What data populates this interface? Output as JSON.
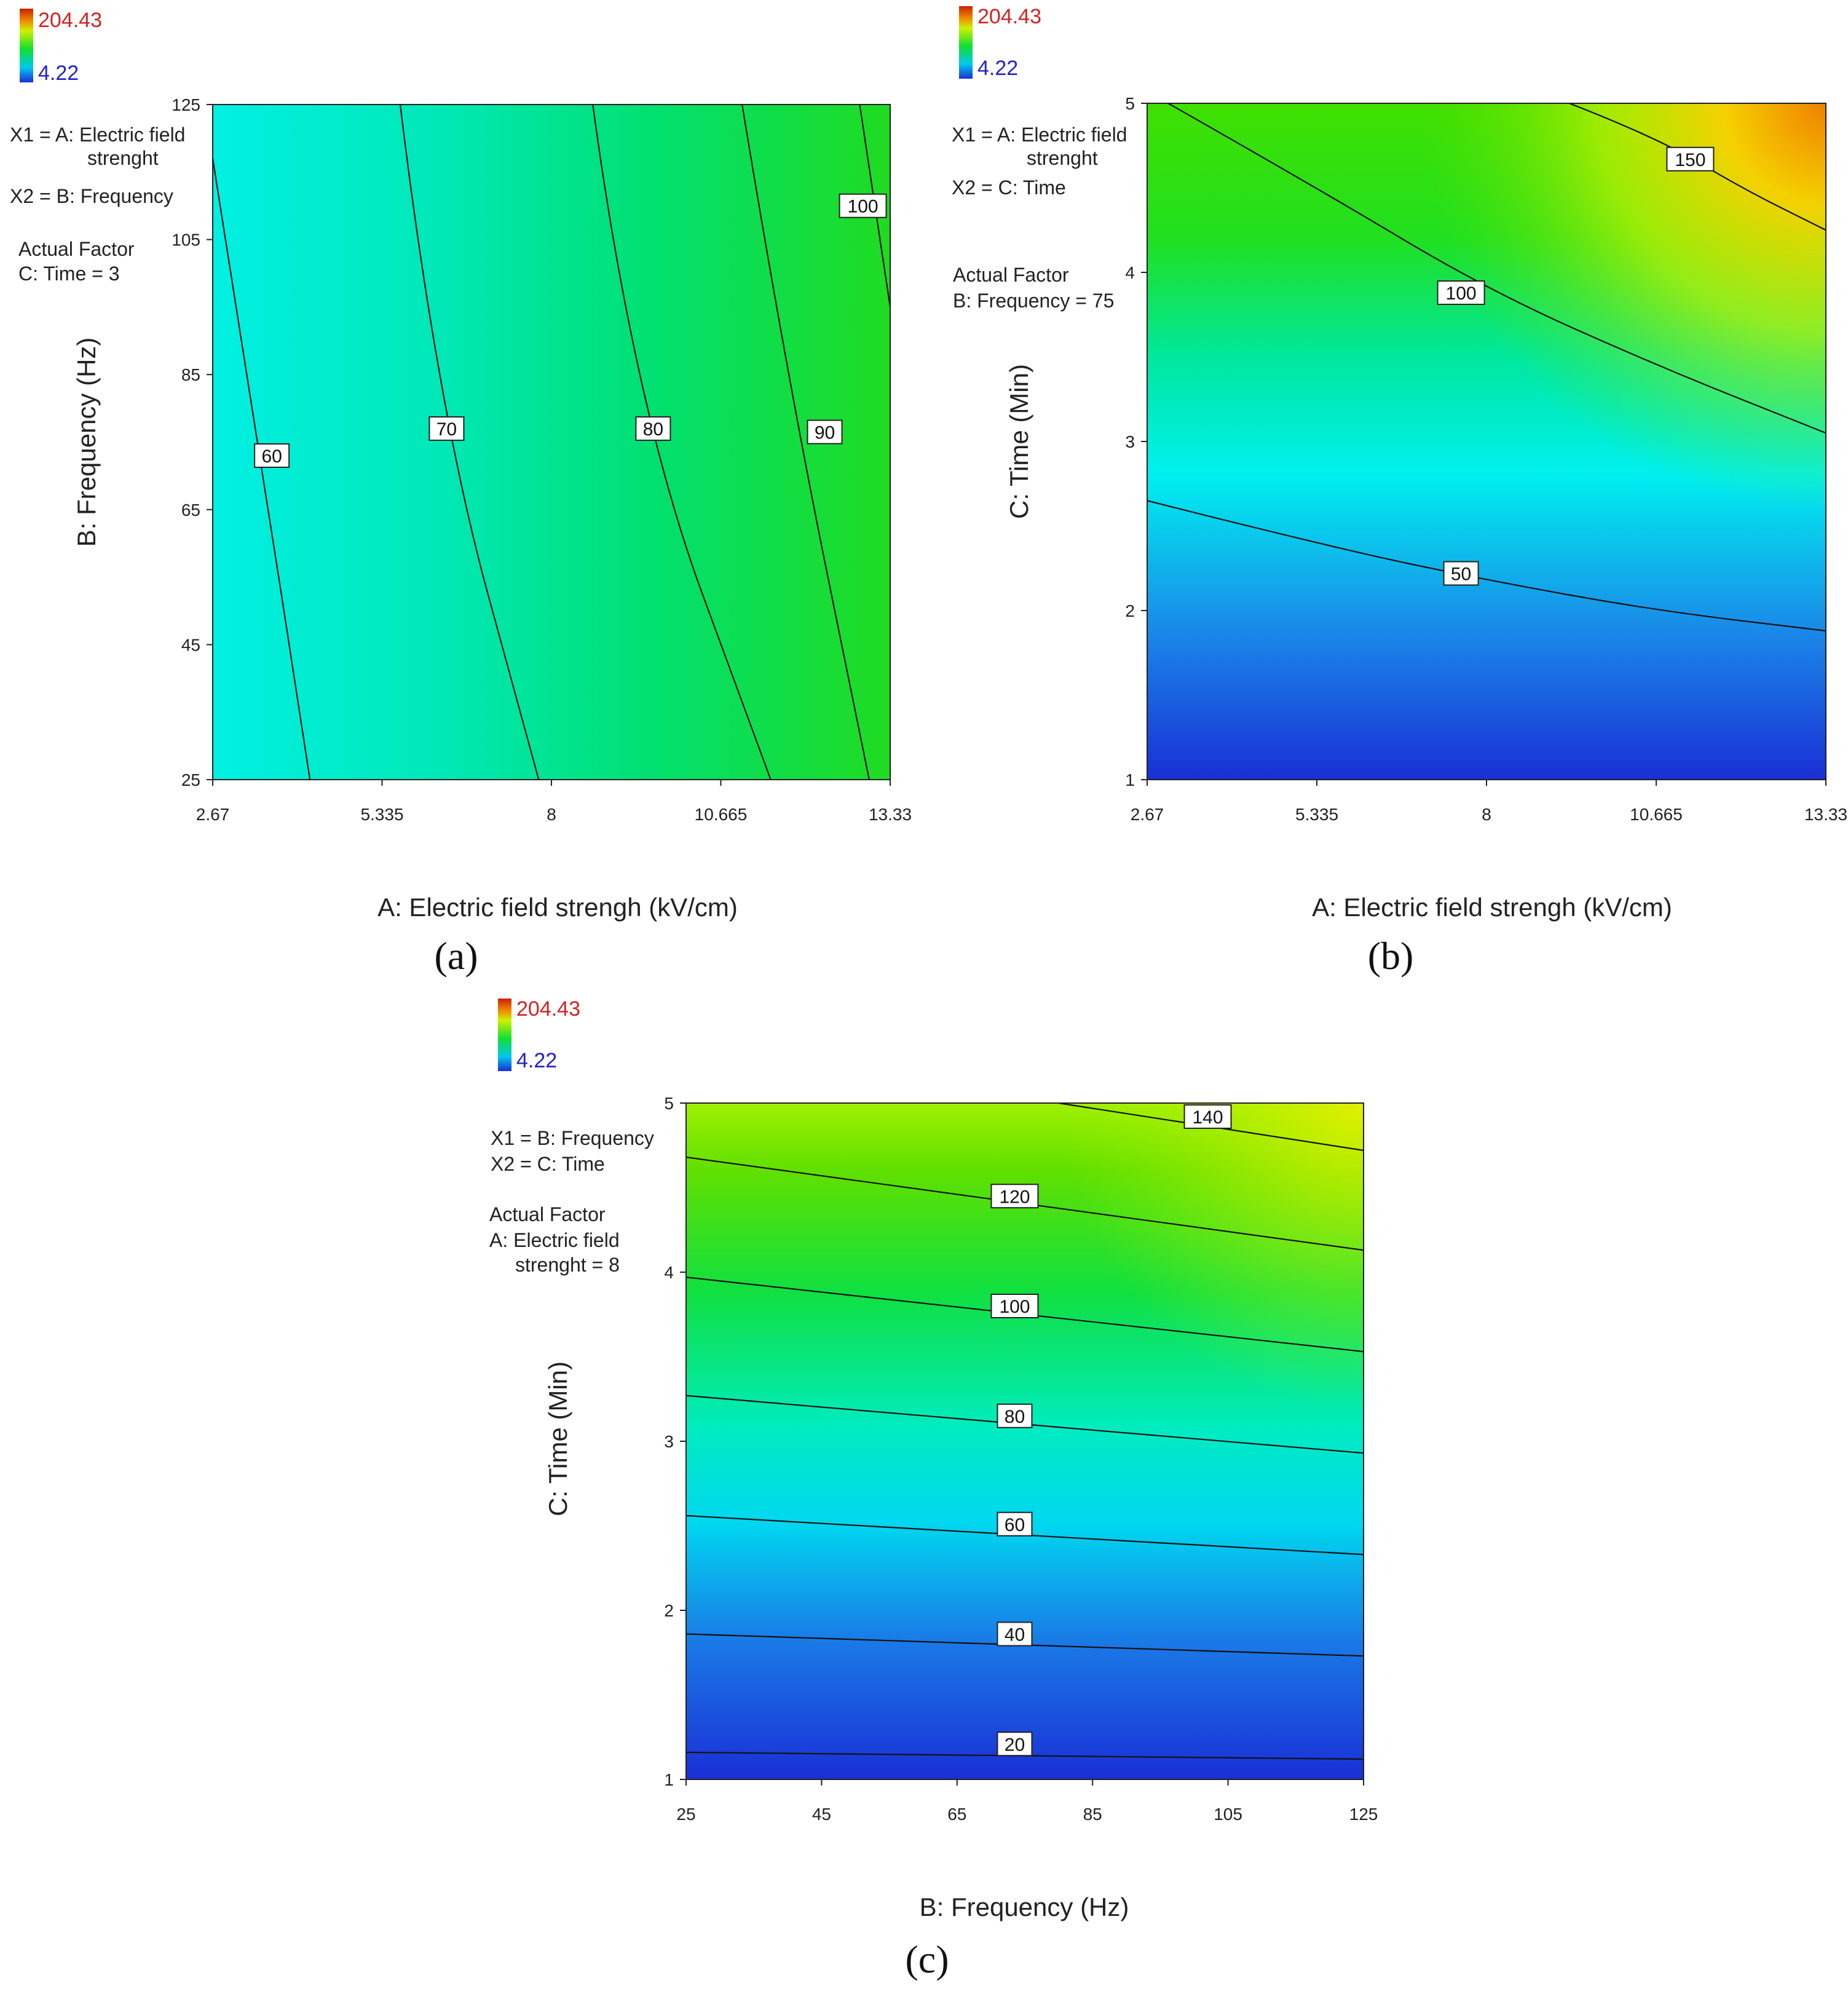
{
  "colors": {
    "scale": [
      "#1a2fd6",
      "#1a88e8",
      "#00f0f0",
      "#00e8b0",
      "#1ee01e",
      "#b8f000",
      "#ffe000",
      "#f08000",
      "#c82000"
    ],
    "legend_max_text": "#d42222",
    "legend_min_text": "#2222cc",
    "contour": "#111111",
    "axis": "#222222"
  },
  "chart_data": [
    {
      "id": "a",
      "type": "heatmap",
      "subtype": "contour",
      "panel_label": "(a)",
      "legend": {
        "max": 204.43,
        "min": 4.22,
        "max_label": "204.43",
        "min_label": "4.22"
      },
      "xlabel": "A: Electric field strengh  (kV/cm)",
      "ylabel": "B: Frequency (Hz)",
      "xlim": [
        2.67,
        13.33
      ],
      "ylim": [
        25,
        125
      ],
      "x_ticks": [
        "2.67",
        "5.335",
        "8",
        "10.665",
        "13.33"
      ],
      "y_ticks": [
        "25",
        "45",
        "65",
        "85",
        "105",
        "125"
      ],
      "annotation": {
        "x1": "X1 = A: Electric field",
        "x1_cont": "strenght",
        "x2": "X2 = B: Frequency",
        "actual_factor": "Actual Factor",
        "fixed": "C: Time = 3"
      },
      "response_range": [
        52,
        104
      ],
      "contours": [
        {
          "level": 60,
          "label": "60",
          "points": [
            [
              2.67,
              117
            ],
            [
              3.3,
              80
            ],
            [
              4.2,
              25
            ]
          ],
          "label_at": [
            3.6,
            73
          ]
        },
        {
          "level": 70,
          "label": "70",
          "points": [
            [
              5.62,
              125
            ],
            [
              6.2,
              80
            ],
            [
              7.8,
              25
            ]
          ],
          "label_at": [
            6.35,
            77
          ]
        },
        {
          "level": 80,
          "label": "80",
          "points": [
            [
              8.65,
              125
            ],
            [
              9.3,
              80
            ],
            [
              11.45,
              25
            ]
          ],
          "label_at": [
            9.6,
            77
          ]
        },
        {
          "level": 90,
          "label": "90",
          "points": [
            [
              11.0,
              125
            ],
            [
              11.7,
              85
            ],
            [
              13.0,
              25
            ]
          ],
          "label_at": [
            12.3,
            76.5
          ]
        },
        {
          "level": 100,
          "label": "100",
          "points": [
            [
              12.85,
              125
            ],
            [
              13.33,
              95
            ]
          ],
          "label_at": [
            12.9,
            110
          ]
        }
      ]
    },
    {
      "id": "b",
      "type": "heatmap",
      "subtype": "contour",
      "panel_label": "(b)",
      "legend": {
        "max": 204.43,
        "min": 4.22,
        "max_label": "204.43",
        "min_label": "4.22"
      },
      "xlabel": "A: Electric field strengh  (kV/cm)",
      "ylabel": "C: Time (Min)",
      "xlim": [
        2.67,
        13.33
      ],
      "ylim": [
        1,
        5
      ],
      "x_ticks": [
        "2.67",
        "5.335",
        "8",
        "10.665",
        "13.33"
      ],
      "y_ticks": [
        "1",
        "2",
        "3",
        "4",
        "5"
      ],
      "annotation": {
        "x1": "X1 = A: Electric field",
        "x1_cont": "strenght",
        "x2": "X2 = C: Time",
        "actual_factor": "Actual Factor",
        "fixed": "B: Frequency = 75"
      },
      "contours": [
        {
          "level": 50,
          "label": "50",
          "points": [
            [
              2.67,
              2.65
            ],
            [
              5.5,
              2.38
            ],
            [
              8.0,
              2.18
            ],
            [
              10.665,
              2.0
            ],
            [
              13.33,
              1.88
            ]
          ],
          "label_at": [
            7.6,
            2.22
          ]
        },
        {
          "level": 100,
          "label": "100",
          "points": [
            [
              3.0,
              5.0
            ],
            [
              5.335,
              4.5
            ],
            [
              8.0,
              3.9
            ],
            [
              10.665,
              3.45
            ],
            [
              13.33,
              3.05
            ]
          ],
          "label_at": [
            7.6,
            3.88
          ]
        },
        {
          "level": 150,
          "label": "150",
          "points": [
            [
              9.3,
              5.0
            ],
            [
              10.665,
              4.8
            ],
            [
              12.0,
              4.5
            ],
            [
              13.33,
              4.25
            ]
          ],
          "label_at": [
            11.2,
            4.67
          ]
        }
      ]
    },
    {
      "id": "c",
      "type": "heatmap",
      "subtype": "contour",
      "panel_label": "(c)",
      "legend": {
        "max": 204.43,
        "min": 4.22,
        "max_label": "204.43",
        "min_label": "4.22"
      },
      "xlabel": "B: Frequency (Hz)",
      "ylabel": "C: Time (Min)",
      "xlim": [
        25,
        125
      ],
      "ylim": [
        1,
        5
      ],
      "x_ticks": [
        "25",
        "45",
        "65",
        "85",
        "105",
        "125"
      ],
      "y_ticks": [
        "1",
        "2",
        "3",
        "4",
        "5"
      ],
      "annotation": {
        "x1": "X1 = B: Frequency",
        "x2": "X2 = C: Time",
        "actual_factor": "Actual Factor",
        "fixed": "A: Electric field",
        "fixed_cont": "strenght = 8"
      },
      "contours": [
        {
          "level": 20,
          "label": "20",
          "points": [
            [
              25,
              1.16
            ],
            [
              125,
              1.12
            ]
          ],
          "label_at": [
            73.5,
            1.21
          ]
        },
        {
          "level": 40,
          "label": "40",
          "points": [
            [
              25,
              1.86
            ],
            [
              125,
              1.73
            ]
          ],
          "label_at": [
            73.5,
            1.86
          ]
        },
        {
          "level": 60,
          "label": "60",
          "points": [
            [
              25,
              2.56
            ],
            [
              125,
              2.33
            ]
          ],
          "label_at": [
            73.5,
            2.51
          ]
        },
        {
          "level": 80,
          "label": "80",
          "points": [
            [
              25,
              3.27
            ],
            [
              125,
              2.93
            ]
          ],
          "label_at": [
            73.5,
            3.15
          ]
        },
        {
          "level": 100,
          "label": "100",
          "points": [
            [
              25,
              3.97
            ],
            [
              125,
              3.53
            ]
          ],
          "label_at": [
            73.5,
            3.8
          ]
        },
        {
          "level": 120,
          "label": "120",
          "points": [
            [
              25,
              4.68
            ],
            [
              125,
              4.13
            ]
          ],
          "label_at": [
            73.5,
            4.45
          ]
        },
        {
          "level": 140,
          "label": "140",
          "points": [
            [
              80,
              5.0
            ],
            [
              125,
              4.72
            ]
          ],
          "label_at": [
            102,
            4.92
          ]
        }
      ]
    }
  ]
}
